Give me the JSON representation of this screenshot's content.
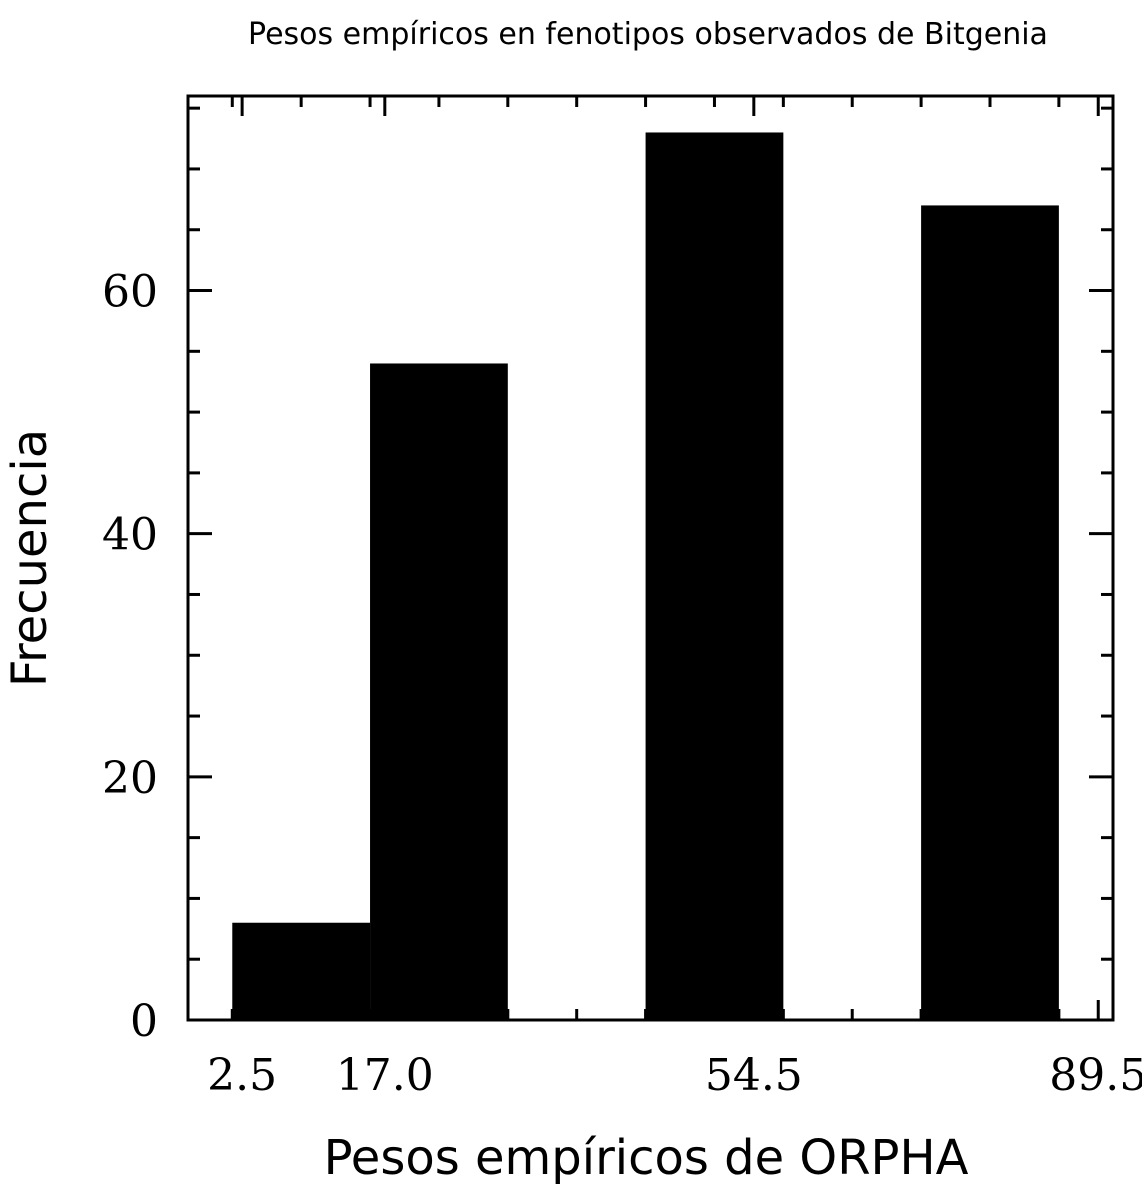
{
  "chart_data": {
    "type": "bar",
    "title": "Pesos empíricos en fenotipos observados de Bitgenia",
    "xlabel": "Pesos empíricos de ORPHA",
    "ylabel": "Frecuencia",
    "xlim": [
      -3.0,
      91.0
    ],
    "ylim": [
      0,
      76
    ],
    "bins": [
      {
        "x0": 1.5,
        "x1": 15.5,
        "value": 8
      },
      {
        "x0": 15.5,
        "x1": 29.5,
        "value": 54
      },
      {
        "x0": 29.5,
        "x1": 43.5,
        "value": 0
      },
      {
        "x0": 43.5,
        "x1": 57.5,
        "value": 73
      },
      {
        "x0": 57.5,
        "x1": 71.5,
        "value": 0
      },
      {
        "x0": 71.5,
        "x1": 85.5,
        "value": 67
      }
    ],
    "bar_color": "#000000",
    "x_ticks": [
      2.5,
      17.0,
      54.5,
      89.5
    ],
    "x_tick_labels": [
      "2.5",
      "17.0",
      "54.5",
      "89.5"
    ],
    "y_ticks": [
      0,
      20,
      40,
      60
    ],
    "y_tick_labels": [
      "0",
      "20",
      "40",
      "60"
    ],
    "grid": false
  }
}
